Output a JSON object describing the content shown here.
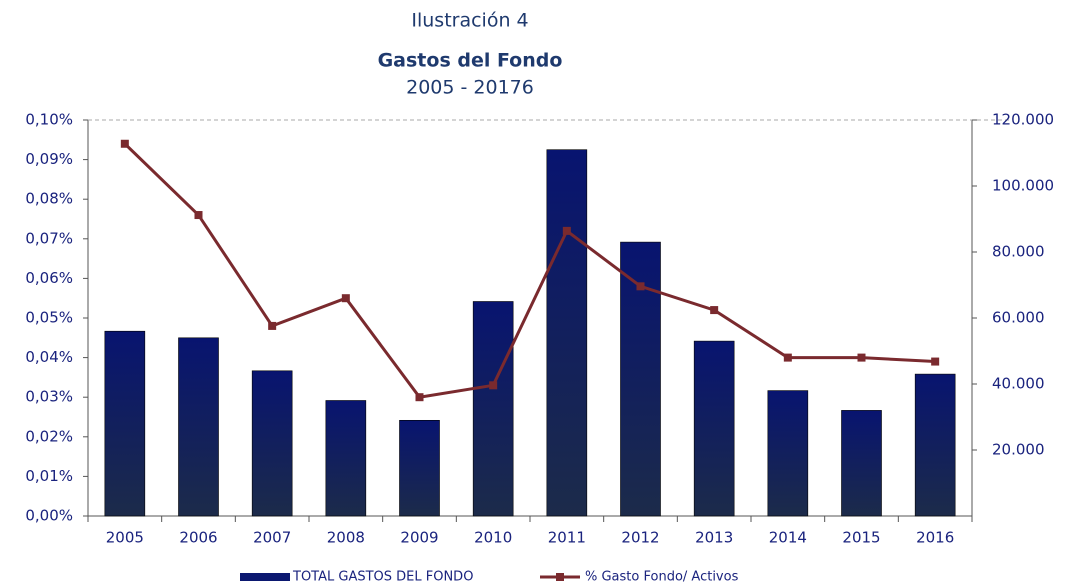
{
  "chart_data": {
    "type": "bar",
    "title": "Ilustración 4",
    "subtitle": "Gastos del Fondo",
    "period": "2005 - 20176",
    "categories": [
      "2005",
      "2006",
      "2007",
      "2008",
      "2009",
      "2010",
      "2011",
      "2012",
      "2013",
      "2014",
      "2015",
      "2016"
    ],
    "series": [
      {
        "name": "TOTAL GASTOS DEL FONDO",
        "type": "bar",
        "axis": "y2",
        "color": "#0b1870",
        "values": [
          56000,
          54000,
          44000,
          35000,
          29000,
          65000,
          111000,
          83000,
          53000,
          38000,
          32000,
          43000
        ]
      },
      {
        "name": "% Gasto Fondo/ Activos",
        "type": "line",
        "axis": "y",
        "color": "#7a2a2e",
        "values": [
          0.094,
          0.076,
          0.048,
          0.055,
          0.03,
          0.033,
          0.072,
          0.058,
          0.052,
          0.04,
          0.04,
          0.039
        ]
      }
    ],
    "ylim": [
      0,
      0.1
    ],
    "yticks": [
      {
        "value": 0,
        "label": "0,00%"
      },
      {
        "value": 0.01,
        "label": "0,01%"
      },
      {
        "value": 0.02,
        "label": "0,02%"
      },
      {
        "value": 0.03,
        "label": "0,03%"
      },
      {
        "value": 0.04,
        "label": "0,04%"
      },
      {
        "value": 0.05,
        "label": "0,05%"
      },
      {
        "value": 0.06,
        "label": "0,06%"
      },
      {
        "value": 0.07,
        "label": "0,07%"
      },
      {
        "value": 0.08,
        "label": "0,08%"
      },
      {
        "value": 0.09,
        "label": "0,09%"
      },
      {
        "value": 0.1,
        "label": "0,10%"
      }
    ],
    "y2lim": [
      0,
      120000
    ],
    "y2ticks": [
      {
        "value": 20000,
        "label": "20.000"
      },
      {
        "value": 40000,
        "label": "40.000"
      },
      {
        "value": 60000,
        "label": "60.000"
      },
      {
        "value": 80000,
        "label": "80.000"
      },
      {
        "value": 100000,
        "label": "100.000"
      },
      {
        "value": 120000,
        "label": "120.000"
      }
    ],
    "grid": false,
    "legend": "bottom"
  }
}
